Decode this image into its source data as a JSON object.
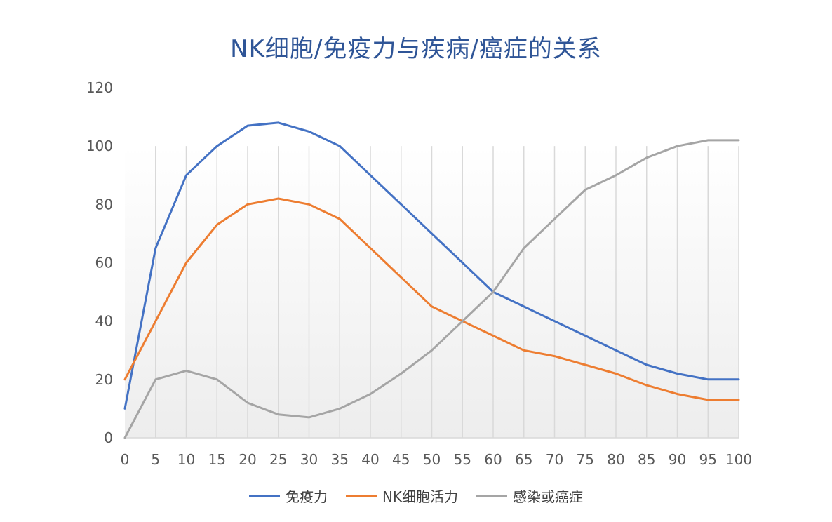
{
  "chart_data": {
    "type": "line",
    "title": "NK细胞/免疫力与疾病/癌症的关系",
    "xlabel": "",
    "ylabel": "",
    "x": [
      0,
      5,
      10,
      15,
      20,
      25,
      30,
      35,
      40,
      45,
      50,
      55,
      60,
      65,
      70,
      75,
      80,
      85,
      90,
      95,
      100
    ],
    "x_tick_labels": [
      "0",
      "5",
      "10",
      "15",
      "20",
      "25",
      "30",
      "35",
      "40",
      "45",
      "50",
      "55",
      "60",
      "65",
      "70",
      "75",
      "80",
      "85",
      "90",
      "95",
      "100"
    ],
    "ylim": [
      0,
      120
    ],
    "y_ticks": [
      0,
      20,
      40,
      60,
      80,
      100,
      120
    ],
    "y_tick_labels": [
      "0",
      "20",
      "40",
      "60",
      "80",
      "100",
      "120"
    ],
    "grid": "vertical",
    "legend_position": "bottom",
    "series": [
      {
        "name": "免疫力",
        "color": "#4472C4",
        "values": [
          10,
          65,
          90,
          100,
          107,
          108,
          105,
          100,
          90,
          80,
          70,
          60,
          50,
          45,
          40,
          35,
          30,
          25,
          22,
          20,
          20
        ]
      },
      {
        "name": "NK细胞活力",
        "color": "#ED7D31",
        "values": [
          20,
          40,
          60,
          73,
          80,
          82,
          80,
          75,
          65,
          55,
          45,
          40,
          35,
          30,
          28,
          25,
          22,
          18,
          15,
          13,
          13
        ]
      },
      {
        "name": "感染或癌症",
        "color": "#A5A5A5",
        "values": [
          0,
          20,
          23,
          20,
          12,
          8,
          7,
          10,
          15,
          22,
          30,
          40,
          50,
          65,
          75,
          85,
          90,
          96,
          100,
          102,
          102
        ]
      }
    ]
  }
}
